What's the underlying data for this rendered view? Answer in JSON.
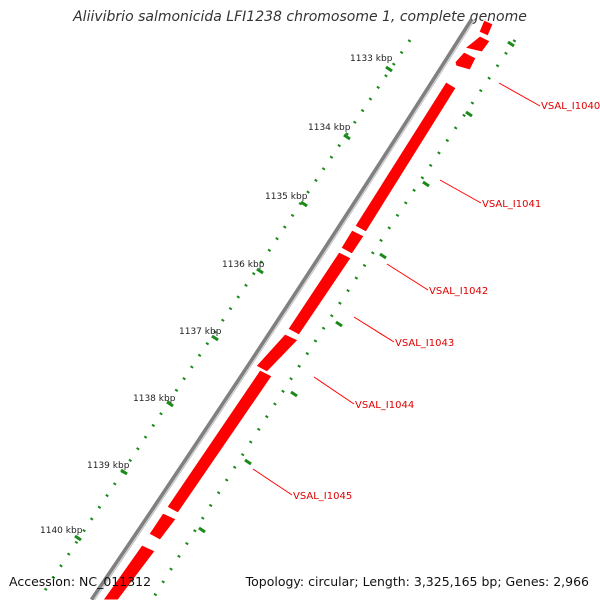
{
  "title": "Aliivibrio salmonicida LFI1238 chromosome 1, complete genome",
  "footer": {
    "accession": "Accession: NC_011312",
    "stats": "Topology: circular; Length: 3,325,165 bp; Genes: 2,966"
  },
  "ruler_ticks": [
    "1133 kbp",
    "1134 kbp",
    "1135 kbp",
    "1136 kbp",
    "1137 kbp",
    "1138 kbp",
    "1139 kbp",
    "1140 kbp"
  ],
  "gene_labels": [
    "VSAL_I1040",
    "VSAL_I1041",
    "VSAL_I1042",
    "VSAL_I1043",
    "VSAL_I1044",
    "VSAL_I1045"
  ],
  "colors": {
    "gene": "#ff0000",
    "gene_label": "#e00000",
    "leader": "#ff0000",
    "backbone": "#808080",
    "dots": "#1a8a1a"
  }
}
